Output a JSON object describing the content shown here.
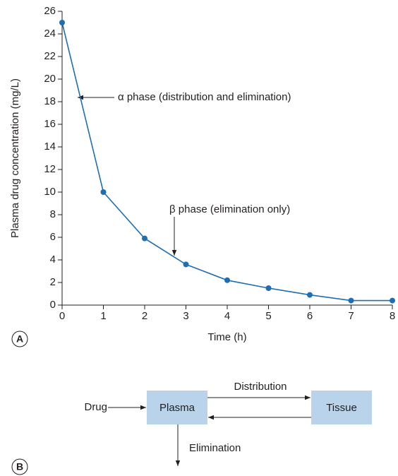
{
  "chart_data": {
    "type": "line",
    "x": [
      0,
      1,
      2,
      3,
      4,
      5,
      6,
      7,
      8
    ],
    "values": [
      25,
      10,
      5.9,
      3.6,
      2.2,
      1.5,
      0.9,
      0.4,
      0.4
    ],
    "color": "#1f6db3",
    "xlim": [
      0,
      8
    ],
    "xticks": [
      0,
      1,
      2,
      3,
      4,
      5,
      6,
      7,
      8
    ],
    "ylim": [
      0,
      26
    ],
    "yticks": [
      0,
      2,
      4,
      6,
      8,
      10,
      12,
      14,
      16,
      18,
      20,
      22,
      24,
      26
    ],
    "x_label": "Time (h)",
    "y_label": "Plasma drug concentration (mg/L)",
    "annotations": [
      "α phase (distribution and elimination)",
      "β phase (elimination only)"
    ],
    "panel_label": "A"
  },
  "diagram": {
    "panel_label": "B",
    "nodes": [
      {
        "label": "Drug"
      },
      {
        "label": "Plasma"
      },
      {
        "label": "Tissue"
      }
    ],
    "edges": [
      {
        "label": "Distribution"
      },
      {
        "label": "Elimination"
      }
    ]
  }
}
